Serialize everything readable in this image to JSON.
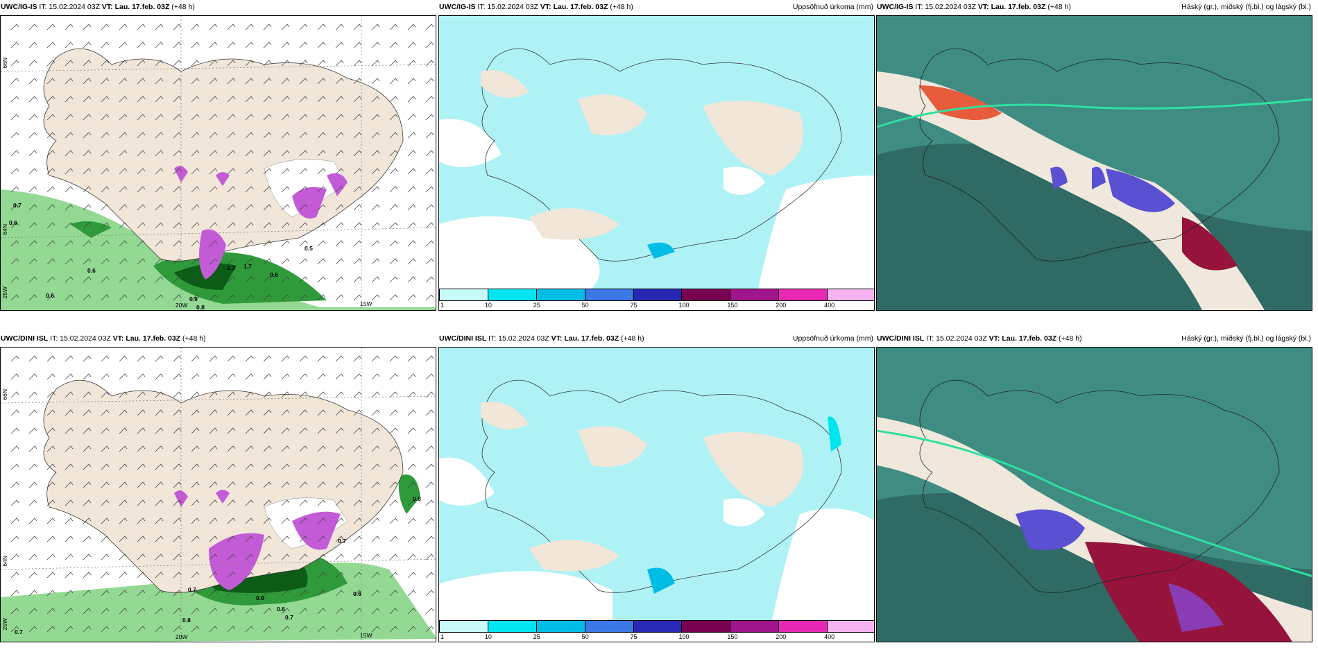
{
  "panels": [
    {
      "model": "UWC/IG-IS",
      "it": "IT: 15.02.2024 03Z",
      "vt_label": "VT:",
      "vt": "Lau. 17.feb. 03Z",
      "lead": "(+48 h)",
      "product": "",
      "type": "wind"
    },
    {
      "model": "UWC/IG-IS",
      "it": "IT: 15.02.2024 03Z",
      "vt_label": "VT:",
      "vt": "Lau. 17.feb. 03Z",
      "lead": "(+48 h)",
      "product": "Uppsöfnuð úrkoma (mm)",
      "type": "precip"
    },
    {
      "model": "UWC/IG-IS",
      "it": "IT: 15.02.2024 03Z",
      "vt_label": "VT:",
      "vt": "Lau. 17.feb. 03Z",
      "lead": "(+48 h)",
      "product": "Háský (gr.), miðský (fj.bl.) og lágský (bl.)",
      "type": "cloud"
    },
    {
      "model": "UWC/DINI ISL",
      "it": "IT: 15.02.2024 03Z",
      "vt_label": "VT:",
      "vt": "Lau. 17.feb. 03Z",
      "lead": "(+48 h)",
      "product": "",
      "type": "wind"
    },
    {
      "model": "UWC/DINI ISL",
      "it": "IT: 15.02.2024 03Z",
      "vt_label": "VT:",
      "vt": "Lau. 17.feb. 03Z",
      "lead": "(+48 h)",
      "product": "Uppsöfnuð úrkoma (mm)",
      "type": "precip"
    },
    {
      "model": "UWC/DINI ISL",
      "it": "IT: 15.02.2024 03Z",
      "vt_label": "VT:",
      "vt": "Lau. 17.feb. 03Z",
      "lead": "(+48 h)",
      "product": "Háský (gr.), miðský (fj.bl.) og lágský (bl.)",
      "type": "cloud"
    }
  ],
  "axis_labels": {
    "lat66": "66N",
    "lat64": "64N",
    "lon20": "20W",
    "lon15": "15W",
    "lon25": "25W"
  },
  "colorbar": {
    "ticks": [
      "1",
      "10",
      "25",
      "50",
      "75",
      "100",
      "150",
      "200",
      "400"
    ],
    "colors": [
      "#c8fafa",
      "#00e5f0",
      "#00bde6",
      "#3c78e6",
      "#2828b4",
      "#780050",
      "#a0148c",
      "#e628b4",
      "#f5b4f0"
    ]
  },
  "wind_values_top": [
    "0.7",
    "0.6",
    "0.6",
    "0.6",
    "0.8",
    "0.9",
    "2.3",
    "0.5",
    "0.6",
    "1.7"
  ],
  "wind_values_bottom": [
    "0.7",
    "0.8",
    "0.7",
    "0.9",
    "0.6",
    "0.6",
    "0.7",
    "0.8",
    "0.7"
  ],
  "colors": {
    "land": "#f1e6d8",
    "sea": "#ffffff",
    "precip_light": "#aef2f6",
    "wind_green": "#93d993",
    "wind_dark": "#0b5d16",
    "snow_purple": "#c45bd6",
    "cloud_sea": "#3f8c82"
  }
}
